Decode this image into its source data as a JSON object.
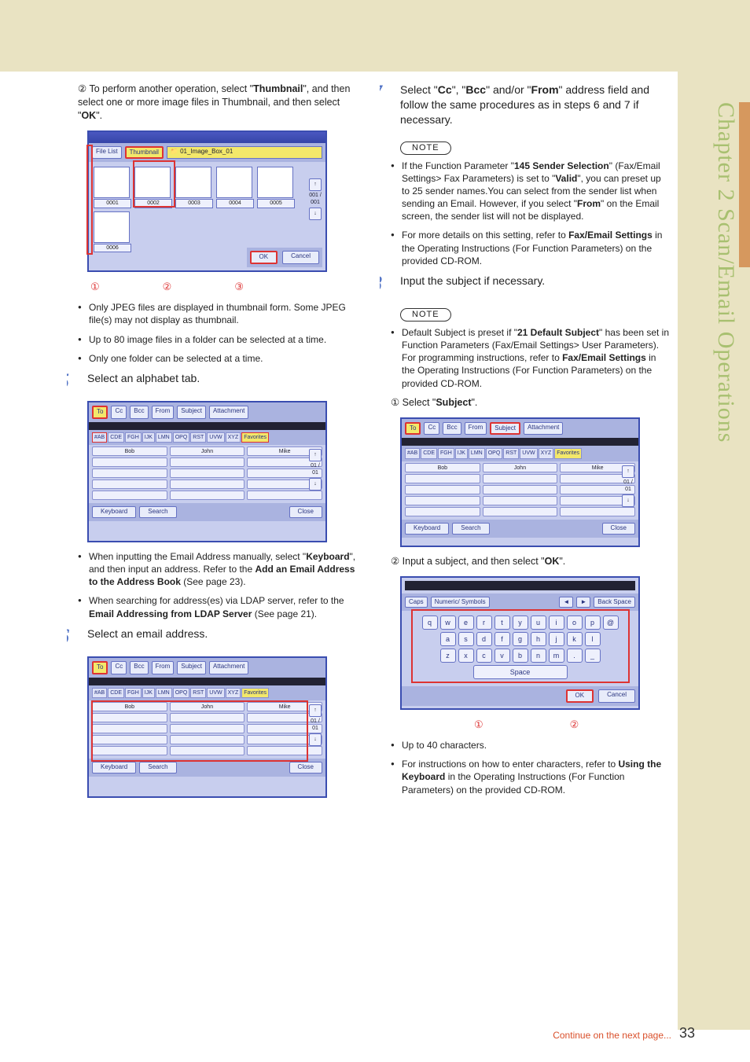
{
  "side_title": "Chapter 2    Scan/Email Operations",
  "page_number": "33",
  "continue_text": "Continue on the next page...",
  "left": {
    "step2_substep": "② To perform another operation, select \"",
    "step2_b1": "Thumbnail",
    "step2_rest1": "\", and then select one or more image files in Thumbnail, and then select \"",
    "step2_b2": "OK",
    "step2_rest2": "\".",
    "thumb_tabs": {
      "file_list": "File List",
      "thumbnail": "Thumbnail",
      "folder": "01_Image_Box_01"
    },
    "thumb_labels": [
      "0001",
      "0002",
      "0003",
      "0004",
      "0005",
      "0006"
    ],
    "thumb_ok": "OK",
    "thumb_cancel": "Cancel",
    "thumb_scroll": "001 / 001",
    "callouts_a": [
      "①",
      "②",
      "③"
    ],
    "bullet_a1": "Only JPEG files are displayed in thumbnail form. Some JPEG file(s) may not display as thumbnail.",
    "bullet_a2": "Up to 80 image files in a folder can be selected at a time.",
    "bullet_a3": "Only one folder can be selected at a time.",
    "step5_num": "5",
    "step5_text": "Select an alphabet tab.",
    "abook_top": {
      "to": "To",
      "cc": "Cc",
      "bcc": "Bcc",
      "from": "From",
      "subject": "Subject",
      "attach": "Attachment"
    },
    "alpha": [
      "#AB",
      "CDE",
      "FGH",
      "IJK",
      "LMN",
      "OPQ",
      "RST",
      "UVW",
      "XYZ",
      "Favorites"
    ],
    "names": [
      "Bob",
      "John",
      "Mike"
    ],
    "btn_keyboard": "Keyboard",
    "btn_search": "Search",
    "btn_close": "Close",
    "scroll_txt": "01 / 01",
    "bullet_b1_a": "When inputting the Email Address manually, select \"",
    "bullet_b1_b": "Keyboard",
    "bullet_b1_c": "\", and then input an address. Refer to the ",
    "bullet_b1_d": "Add an Email Address to the Address Book",
    "bullet_b1_e": " (See page 23).",
    "bullet_b2_a": "When searching for address(es) via LDAP server, refer to the ",
    "bullet_b2_b": "Email Addressing from LDAP Server",
    "bullet_b2_c": " (See page 21).",
    "step6_num": "6",
    "step6_text": "Select an email address."
  },
  "right": {
    "step7_num": "7",
    "step7_a": "Select \"",
    "step7_b1": "Cc",
    "step7_b": "\", \"",
    "step7_b2": "Bcc",
    "step7_c": "\" and/or \"",
    "step7_b3": "From",
    "step7_d": "\" address field and follow the same procedures as in steps 6 and 7 if necessary.",
    "note": "NOTE",
    "note7_1a": "If the Function Parameter \"",
    "note7_1b": "145 Sender Selection",
    "note7_1c": "\" (Fax/Email Settings> Fax Parameters) is set to \"",
    "note7_1d": "Valid",
    "note7_1e": "\", you can preset up to 25 sender names.You can select from the sender list when sending an Email. However, if you select \"",
    "note7_1f": "From",
    "note7_1g": "\" on the Email screen, the sender list will not be displayed.",
    "note7_2a": "For more details on this setting, refer to ",
    "note7_2b": "Fax/Email Settings",
    "note7_2c": " in the Operating Instructions (For Function Parameters) on the provided CD-ROM.",
    "step8_num": "8",
    "step8_text": "Input the subject if necessary.",
    "note8_1a": "Default Subject is preset if \"",
    "note8_1b": "21 Default Subject",
    "note8_1c": "\" has been set in Function Parameters (Fax/Email Settings> User Parameters). For programming instructions, refer to ",
    "note8_1d": "Fax/Email Settings",
    "note8_1e": " in the Operating Instructions (For Function Parameters) on the provided CD-ROM.",
    "sub8_1a": "① Select \"",
    "sub8_1b": "Subject",
    "sub8_1c": "\".",
    "sub8_2a": "② Input a subject, and then select \"",
    "sub8_2b": "OK",
    "sub8_2c": "\".",
    "kbd": {
      "caps": "Caps",
      "numsym": "Numeric/\nSymbols",
      "back": "Back Space",
      "row1": [
        "q",
        "w",
        "e",
        "r",
        "t",
        "y",
        "u",
        "i",
        "o",
        "p",
        "@"
      ],
      "row2": [
        "a",
        "s",
        "d",
        "f",
        "g",
        "h",
        "j",
        "k",
        "l"
      ],
      "row3": [
        "z",
        "x",
        "c",
        "v",
        "b",
        "n",
        "m",
        ".",
        "_"
      ],
      "space": "Space",
      "ok": "OK",
      "cancel": "Cancel"
    },
    "kbd_callouts": [
      "①",
      "②"
    ],
    "bullet_k1": "Up to 40 characters.",
    "bullet_k2a": "For instructions on how to enter characters, refer to ",
    "bullet_k2b": "Using the Keyboard",
    "bullet_k2c": " in the Operating Instructions (For Function Parameters) on the provided CD-ROM."
  }
}
